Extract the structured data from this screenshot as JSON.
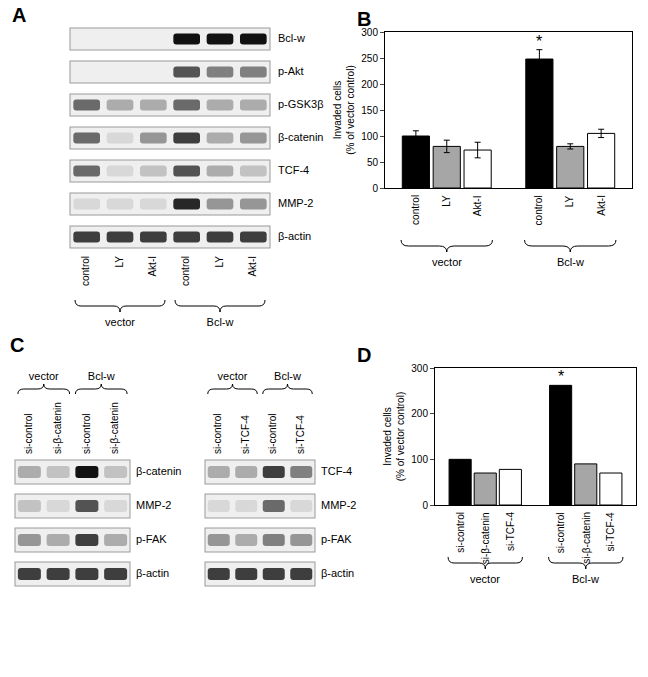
{
  "chart_data": [
    {
      "type": "bar",
      "title": "B",
      "y_label": "Invaded cells\n(% of vector control)",
      "categories": [
        "vector",
        "Bcl-w"
      ],
      "series": [
        {
          "name": "control",
          "color": "#000000",
          "values": [
            100,
            248
          ],
          "errors": [
            10,
            18
          ]
        },
        {
          "name": "LY",
          "color": "#a6a6a6",
          "values": [
            80,
            80
          ],
          "errors": [
            12,
            5
          ]
        },
        {
          "name": "Akt-I",
          "color": "#ffffff",
          "values": [
            73,
            105
          ],
          "errors": [
            15,
            8
          ]
        }
      ],
      "ylim": [
        0,
        300
      ],
      "yticks": [
        0,
        50,
        100,
        150,
        200,
        250,
        300
      ],
      "grid": false,
      "significance": [
        {
          "category": "Bcl-w",
          "series": "control",
          "label": "*"
        }
      ]
    },
    {
      "type": "bar",
      "title": "D",
      "y_label": "Invaded cells\n(% of vector control)",
      "categories": [
        "vector",
        "Bcl-w"
      ],
      "series": [
        {
          "name": "si-control",
          "color": "#000000",
          "values": [
            100,
            262
          ]
        },
        {
          "name": "si-β-catenin",
          "color": "#a6a6a6",
          "values": [
            70,
            90
          ]
        },
        {
          "name": "si-TCF-4",
          "color": "#ffffff",
          "values": [
            78,
            70
          ]
        }
      ],
      "ylim": [
        0,
        300
      ],
      "yticks": [
        0,
        100,
        200,
        300
      ],
      "grid": false,
      "significance": [
        {
          "category": "Bcl-w",
          "series": "si-control",
          "label": "*"
        }
      ]
    }
  ],
  "blots": [
    {
      "panel": "A",
      "groups": [
        {
          "label": "vector",
          "lanes": [
            "control",
            "LY",
            "Akt-I"
          ]
        },
        {
          "label": "Bcl-w",
          "lanes": [
            "control",
            "LY",
            "Akt-I"
          ]
        }
      ],
      "rows": [
        {
          "label": "Bcl-w",
          "intensity": [
            0,
            0,
            0,
            1,
            1,
            1
          ]
        },
        {
          "label": "p-Akt",
          "intensity": [
            0,
            0,
            0,
            0.7,
            0.5,
            0.5
          ]
        },
        {
          "label": "p-GSK3β",
          "intensity": [
            0.6,
            0.3,
            0.3,
            0.6,
            0.3,
            0.3
          ]
        },
        {
          "label": "β-catenin",
          "intensity": [
            0.6,
            0.1,
            0.4,
            0.8,
            0.3,
            0.4
          ]
        },
        {
          "label": "TCF-4",
          "intensity": [
            0.6,
            0.1,
            0.2,
            0.7,
            0.3,
            0.2
          ]
        },
        {
          "label": "MMP-2",
          "intensity": [
            0.1,
            0.1,
            0.1,
            0.9,
            0.4,
            0.4
          ]
        },
        {
          "label": "β-actin",
          "intensity": [
            0.8,
            0.8,
            0.8,
            0.8,
            0.8,
            0.8
          ]
        }
      ]
    },
    {
      "panel": "C",
      "groups": [
        {
          "label": "vector",
          "lanes": [
            "si-control",
            "si-β-catenin"
          ]
        },
        {
          "label": "Bcl-w",
          "lanes": [
            "si-control",
            "si-β-catenin"
          ]
        }
      ],
      "rows": [
        {
          "label": "β-catenin",
          "intensity": [
            0.3,
            0.2,
            1,
            0.2
          ]
        },
        {
          "label": "MMP-2",
          "intensity": [
            0.2,
            0.1,
            0.7,
            0.1
          ]
        },
        {
          "label": "p-FAK",
          "intensity": [
            0.4,
            0.3,
            0.8,
            0.3
          ]
        },
        {
          "label": "β-actin",
          "intensity": [
            0.8,
            0.8,
            0.8,
            0.8
          ]
        }
      ]
    },
    {
      "groups": [
        {
          "label": "vector",
          "lanes": [
            "si-control",
            "si-TCF-4"
          ]
        },
        {
          "label": "Bcl-w",
          "lanes": [
            "si-control",
            "si-TCF-4"
          ]
        }
      ],
      "rows": [
        {
          "label": "TCF-4",
          "intensity": [
            0.3,
            0.3,
            0.8,
            0.5
          ]
        },
        {
          "label": "MMP-2",
          "intensity": [
            0.1,
            0.1,
            0.6,
            0.1
          ]
        },
        {
          "label": "p-FAK",
          "intensity": [
            0.4,
            0.3,
            0.5,
            0.4
          ]
        },
        {
          "label": "β-actin",
          "intensity": [
            0.8,
            0.8,
            0.8,
            0.8
          ]
        }
      ]
    }
  ]
}
